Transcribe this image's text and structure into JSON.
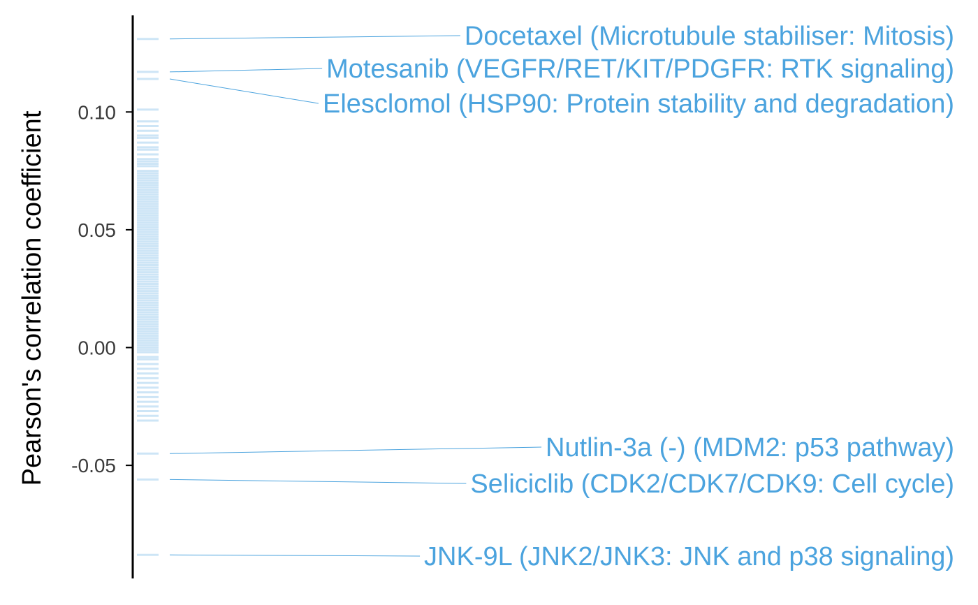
{
  "chart_data": {
    "type": "strip",
    "ylabel": "Pearson's correlation coefficient",
    "ylim": [
      -0.098,
      0.141
    ],
    "yticks": [
      {
        "value": 0.1,
        "label": "0.10"
      },
      {
        "value": 0.05,
        "label": "0.05"
      },
      {
        "value": 0.0,
        "label": "0.00"
      },
      {
        "value": -0.05,
        "label": "-0.05"
      }
    ],
    "grid": false,
    "legend": "none",
    "colors": {
      "accent": "#4ba3de",
      "axis": "#000000",
      "tick_text": "#3a3a3a"
    },
    "values": [
      0.131,
      0.117,
      0.114,
      0.101,
      0.096,
      0.094,
      0.092,
      0.09,
      0.089,
      0.087,
      0.085,
      0.084,
      0.082,
      0.08,
      0.079,
      0.078,
      0.077,
      0.075,
      0.074,
      0.073,
      0.072,
      0.071,
      0.07,
      0.069,
      0.068,
      0.067,
      0.066,
      0.065,
      0.064,
      0.063,
      0.062,
      0.061,
      0.06,
      0.059,
      0.058,
      0.057,
      0.056,
      0.055,
      0.054,
      0.053,
      0.052,
      0.051,
      0.05,
      0.049,
      0.048,
      0.047,
      0.046,
      0.045,
      0.044,
      0.043,
      0.042,
      0.041,
      0.04,
      0.039,
      0.038,
      0.037,
      0.036,
      0.035,
      0.034,
      0.033,
      0.032,
      0.031,
      0.03,
      0.029,
      0.028,
      0.027,
      0.026,
      0.025,
      0.024,
      0.023,
      0.022,
      0.021,
      0.02,
      0.019,
      0.018,
      0.017,
      0.016,
      0.015,
      0.014,
      0.013,
      0.012,
      0.011,
      0.01,
      0.009,
      0.008,
      0.007,
      0.006,
      0.005,
      0.004,
      0.003,
      0.002,
      0.001,
      0.0,
      -0.001,
      -0.002,
      -0.004,
      -0.005,
      -0.007,
      -0.009,
      -0.011,
      -0.013,
      -0.015,
      -0.017,
      -0.019,
      -0.021,
      -0.023,
      -0.025,
      -0.027,
      -0.029,
      -0.031,
      -0.045,
      -0.056,
      -0.088
    ],
    "annotations": [
      {
        "value": 0.131,
        "text": "Docetaxel (Microtubule stabiliser: Mitosis)"
      },
      {
        "value": 0.117,
        "text": "Motesanib (VEGFR/RET/KIT/PDGFR: RTK signaling)"
      },
      {
        "value": 0.114,
        "text": "Elesclomol (HSP90: Protein stability and degradation)"
      },
      {
        "value": -0.045,
        "text": "Nutlin-3a (-) (MDM2: p53 pathway)"
      },
      {
        "value": -0.056,
        "text": "Seliciclib (CDK2/CDK7/CDK9: Cell cycle)"
      },
      {
        "value": -0.088,
        "text": "JNK-9L (JNK2/JNK3: JNK and p38 signaling)"
      }
    ]
  }
}
